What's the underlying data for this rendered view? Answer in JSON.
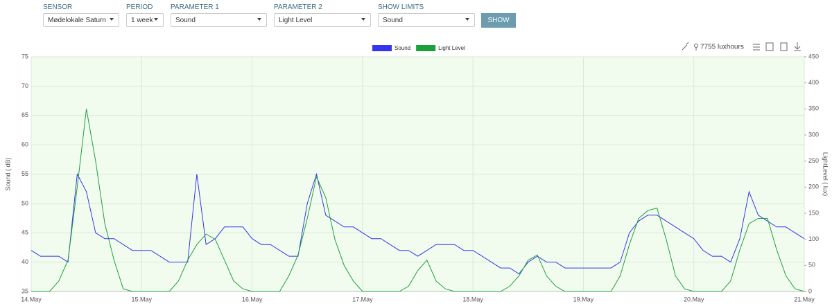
{
  "controls": [
    {
      "label": "SENSOR",
      "value": "Mødelokale Saturn"
    },
    {
      "label": "PERIOD",
      "value": "1 week"
    },
    {
      "label": "PARAMETER 1",
      "value": "Sound"
    },
    {
      "label": "PARAMETER 2",
      "value": "Light Level"
    },
    {
      "label": "SHOW LIMITS",
      "value": "Sound"
    }
  ],
  "button": "SHOW",
  "toolbar": {
    "luxhours": "7755 luxhours"
  },
  "chart_data": {
    "type": "line",
    "categories": [
      "14.May",
      null,
      null,
      null,
      null,
      null,
      null,
      null,
      null,
      null,
      null,
      null,
      "15.May",
      null,
      null,
      null,
      null,
      null,
      null,
      null,
      null,
      null,
      null,
      null,
      "16.May",
      null,
      null,
      null,
      null,
      null,
      null,
      null,
      null,
      null,
      null,
      null,
      "17.May",
      null,
      null,
      null,
      null,
      null,
      null,
      null,
      null,
      null,
      null,
      null,
      "18.May",
      null,
      null,
      null,
      null,
      null,
      null,
      null,
      null,
      null,
      null,
      null,
      "19.May",
      null,
      null,
      null,
      null,
      null,
      null,
      null,
      null,
      null,
      null,
      null,
      "20.May",
      null,
      null,
      null,
      null,
      null,
      null,
      null,
      null,
      null,
      null,
      null,
      "21.May"
    ],
    "series": [
      {
        "name": "Sound",
        "color": "#3535ee",
        "values": [
          42,
          41,
          41,
          41,
          40,
          55,
          52,
          45,
          44,
          44,
          43,
          42,
          42,
          42,
          41,
          40,
          40,
          40,
          55,
          43,
          44,
          46,
          46,
          46,
          44,
          43,
          43,
          42,
          41,
          41,
          50,
          55,
          48,
          47,
          46,
          46,
          45,
          44,
          44,
          43,
          42,
          42,
          41,
          42,
          43,
          43,
          43,
          42,
          42,
          41,
          40,
          39,
          39,
          38,
          40,
          41,
          40,
          40,
          39,
          39,
          39,
          39,
          39,
          39,
          40,
          45,
          47,
          48,
          48,
          47,
          46,
          45,
          44,
          42,
          41,
          41,
          40,
          44,
          52,
          48,
          47,
          46,
          46,
          45,
          44
        ]
      },
      {
        "name": "Light Level",
        "color": "#1f9e3c",
        "axis": "y2",
        "values": [
          0,
          0,
          0,
          20,
          60,
          200,
          350,
          250,
          130,
          60,
          5,
          0,
          0,
          0,
          0,
          0,
          20,
          60,
          90,
          110,
          100,
          60,
          20,
          5,
          0,
          0,
          0,
          0,
          30,
          70,
          140,
          220,
          180,
          100,
          50,
          20,
          0,
          0,
          0,
          0,
          0,
          10,
          40,
          60,
          20,
          5,
          0,
          0,
          0,
          0,
          0,
          0,
          10,
          30,
          60,
          70,
          30,
          10,
          0,
          0,
          0,
          0,
          0,
          0,
          30,
          90,
          140,
          155,
          160,
          100,
          30,
          5,
          0,
          0,
          0,
          0,
          20,
          80,
          130,
          140,
          140,
          80,
          30,
          5,
          0
        ]
      }
    ],
    "ylabel": "Sound ( dB)",
    "y2label": "LightLevel ( lux)",
    "ylim": [
      35,
      75
    ],
    "yticks": [
      35,
      40,
      45,
      50,
      55,
      60,
      65,
      70,
      75
    ],
    "y2lim": [
      0,
      450
    ],
    "y2ticks": [
      0,
      50,
      100,
      150,
      200,
      250,
      300,
      350,
      400,
      450
    ],
    "grid": true,
    "legend": "top",
    "background": "#f1fcef"
  }
}
